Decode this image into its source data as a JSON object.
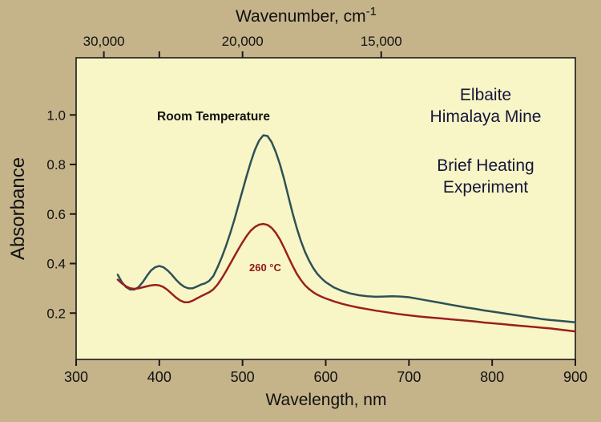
{
  "figure": {
    "colors": {
      "background": "#c5b48a",
      "plot_background": "#f8f5c6",
      "frame": "#1a1a1a",
      "text": "#111111",
      "annotation_text": "#15153a",
      "heated_label": "#8f1818"
    },
    "top_axis": {
      "title": "Wavenumber, cm",
      "title_superscript": "-1"
    },
    "bottom_axis": {
      "title": "Wavelength, nm"
    },
    "left_axis": {
      "title": "Absorbance"
    },
    "annotations": {
      "room_temperature": "Room Temperature",
      "heated": "260 °C",
      "mineral_line1": "Elbaite",
      "mineral_line2": "Himalaya Mine",
      "experiment_line1": "Brief Heating",
      "experiment_line2": "Experiment"
    }
  },
  "chart_data": {
    "type": "line",
    "title": "",
    "xlabel": "Wavelength, nm",
    "ylabel": "Absorbance",
    "top_axis_label": "Wavenumber, cm⁻¹",
    "grid": false,
    "legend_position": "inline-annotations",
    "x_range": [
      300,
      900
    ],
    "y_range": [
      0,
      1.22
    ],
    "x_ticks": [
      300,
      400,
      500,
      600,
      700,
      800,
      900
    ],
    "x_tick_labels": [
      "300",
      "400",
      "500",
      "600",
      "700",
      "800",
      "900"
    ],
    "y_ticks": [
      0.2,
      0.4,
      0.6,
      0.8,
      1.0
    ],
    "y_tick_labels": [
      "0.2",
      "0.4",
      "0.6",
      "0.8",
      "1.0"
    ],
    "top_ticks_wavenumber": [
      30000,
      25000,
      20000,
      15000
    ],
    "top_tick_labels": [
      "30,000",
      "",
      "20,000",
      "15,000"
    ],
    "x": [
      350,
      355,
      360,
      365,
      370,
      375,
      380,
      385,
      390,
      395,
      400,
      405,
      410,
      415,
      420,
      425,
      430,
      435,
      440,
      445,
      450,
      455,
      460,
      465,
      470,
      475,
      480,
      485,
      490,
      495,
      500,
      505,
      510,
      515,
      520,
      525,
      530,
      535,
      540,
      545,
      550,
      555,
      560,
      565,
      570,
      575,
      580,
      585,
      590,
      595,
      600,
      610,
      620,
      630,
      640,
      650,
      660,
      670,
      680,
      690,
      700,
      710,
      720,
      730,
      740,
      750,
      760,
      770,
      780,
      790,
      800,
      810,
      820,
      830,
      840,
      850,
      860,
      870,
      880,
      890,
      900
    ],
    "series": [
      {
        "name": "Room Temperature",
        "color": "#2e5156",
        "values": [
          0.355,
          0.325,
          0.305,
          0.295,
          0.295,
          0.305,
          0.325,
          0.35,
          0.372,
          0.385,
          0.39,
          0.385,
          0.372,
          0.355,
          0.335,
          0.318,
          0.306,
          0.3,
          0.3,
          0.307,
          0.315,
          0.32,
          0.33,
          0.35,
          0.385,
          0.425,
          0.47,
          0.52,
          0.575,
          0.635,
          0.695,
          0.755,
          0.81,
          0.86,
          0.897,
          0.918,
          0.915,
          0.89,
          0.85,
          0.8,
          0.74,
          0.672,
          0.605,
          0.545,
          0.492,
          0.448,
          0.412,
          0.382,
          0.358,
          0.34,
          0.325,
          0.303,
          0.289,
          0.279,
          0.272,
          0.268,
          0.266,
          0.267,
          0.268,
          0.267,
          0.264,
          0.258,
          0.252,
          0.246,
          0.24,
          0.234,
          0.228,
          0.222,
          0.217,
          0.211,
          0.206,
          0.201,
          0.196,
          0.191,
          0.186,
          0.181,
          0.176,
          0.172,
          0.169,
          0.166,
          0.163
        ]
      },
      {
        "name": "260 °C",
        "color": "#9a1f1f",
        "values": [
          0.335,
          0.32,
          0.308,
          0.3,
          0.298,
          0.3,
          0.304,
          0.308,
          0.312,
          0.314,
          0.312,
          0.305,
          0.293,
          0.278,
          0.263,
          0.251,
          0.244,
          0.244,
          0.25,
          0.259,
          0.268,
          0.276,
          0.284,
          0.296,
          0.315,
          0.34,
          0.368,
          0.398,
          0.428,
          0.458,
          0.486,
          0.512,
          0.533,
          0.548,
          0.557,
          0.56,
          0.556,
          0.544,
          0.524,
          0.497,
          0.463,
          0.427,
          0.392,
          0.36,
          0.334,
          0.313,
          0.297,
          0.284,
          0.274,
          0.266,
          0.259,
          0.247,
          0.237,
          0.229,
          0.222,
          0.216,
          0.21,
          0.205,
          0.2,
          0.195,
          0.191,
          0.187,
          0.184,
          0.181,
          0.178,
          0.175,
          0.172,
          0.169,
          0.166,
          0.162,
          0.159,
          0.156,
          0.153,
          0.15,
          0.147,
          0.144,
          0.141,
          0.138,
          0.134,
          0.13,
          0.126
        ]
      }
    ]
  }
}
